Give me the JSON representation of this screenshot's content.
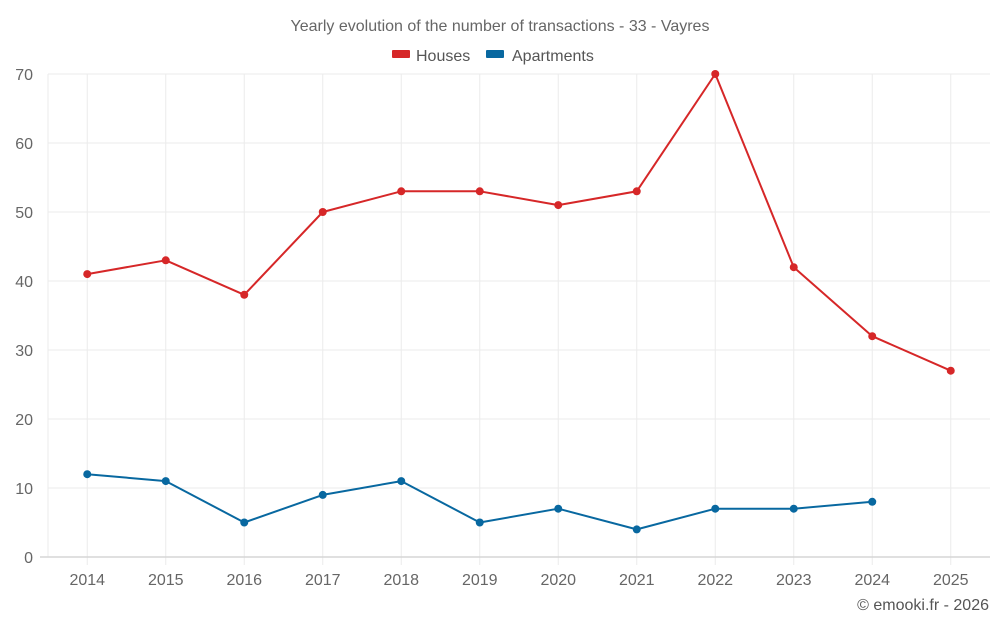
{
  "chart_data": {
    "type": "line",
    "title": "Yearly evolution of the number of transactions - 33 - Vayres",
    "xlabel": "",
    "ylabel": "",
    "categories": [
      "2014",
      "2015",
      "2016",
      "2017",
      "2018",
      "2019",
      "2020",
      "2021",
      "2022",
      "2023",
      "2024",
      "2025"
    ],
    "ylim": [
      0,
      70
    ],
    "yticks": [
      0,
      10,
      20,
      30,
      40,
      50,
      60,
      70
    ],
    "grid": true,
    "legend_position": "top-center",
    "series": [
      {
        "name": "Houses",
        "color": "#d62728",
        "values": [
          41,
          43,
          38,
          50,
          53,
          53,
          51,
          53,
          70,
          42,
          32,
          27
        ]
      },
      {
        "name": "Apartments",
        "color": "#0868a0",
        "values": [
          12,
          11,
          5,
          9,
          11,
          5,
          7,
          4,
          7,
          7,
          8,
          null
        ]
      }
    ]
  },
  "credit": "© emooki.fr - 2026"
}
